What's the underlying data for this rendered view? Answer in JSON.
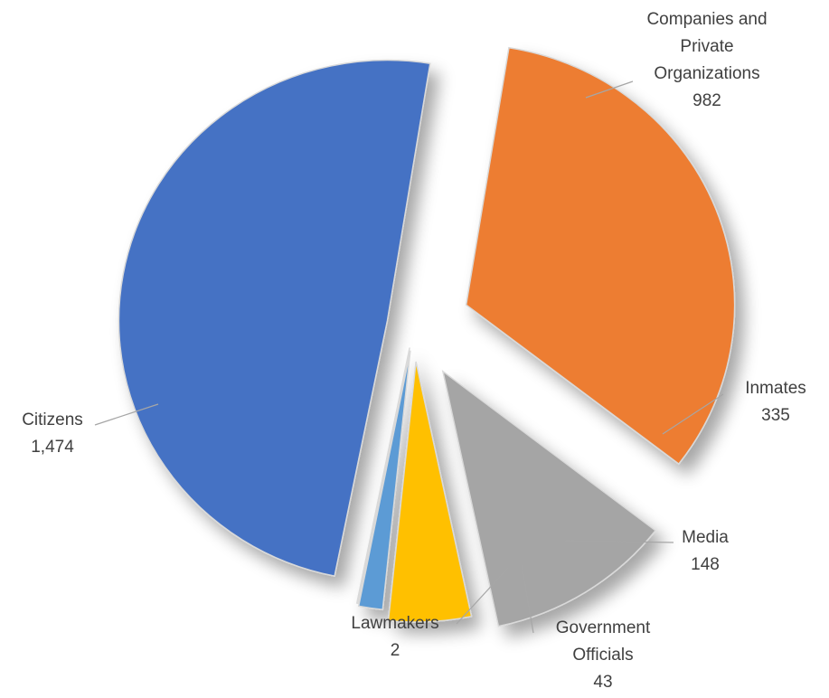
{
  "chart_data": {
    "type": "pie",
    "exploded": true,
    "slices": [
      {
        "label": "Companies and Private Organizations",
        "label_lines": [
          "Companies and",
          "Private",
          "Organizations"
        ],
        "value": 982,
        "value_text": "982",
        "color": "#ED7D31"
      },
      {
        "label": "Inmates",
        "label_lines": [
          "Inmates"
        ],
        "value": 335,
        "value_text": "335",
        "color": "#A5A5A5"
      },
      {
        "label": "Media",
        "label_lines": [
          "Media"
        ],
        "value": 148,
        "value_text": "148",
        "color": "#FFC000"
      },
      {
        "label": "Government Officials",
        "label_lines": [
          "Government",
          "Officials"
        ],
        "value": 43,
        "value_text": "43",
        "color": "#5B9BD5"
      },
      {
        "label": "Lawmakers",
        "label_lines": [
          "Lawmakers"
        ],
        "value": 2,
        "value_text": "2",
        "color": "#264478"
      },
      {
        "label": "Citizens",
        "label_lines": [
          "Citizens"
        ],
        "value": 1474,
        "value_text": "1,474",
        "color": "#4472C4"
      }
    ]
  }
}
